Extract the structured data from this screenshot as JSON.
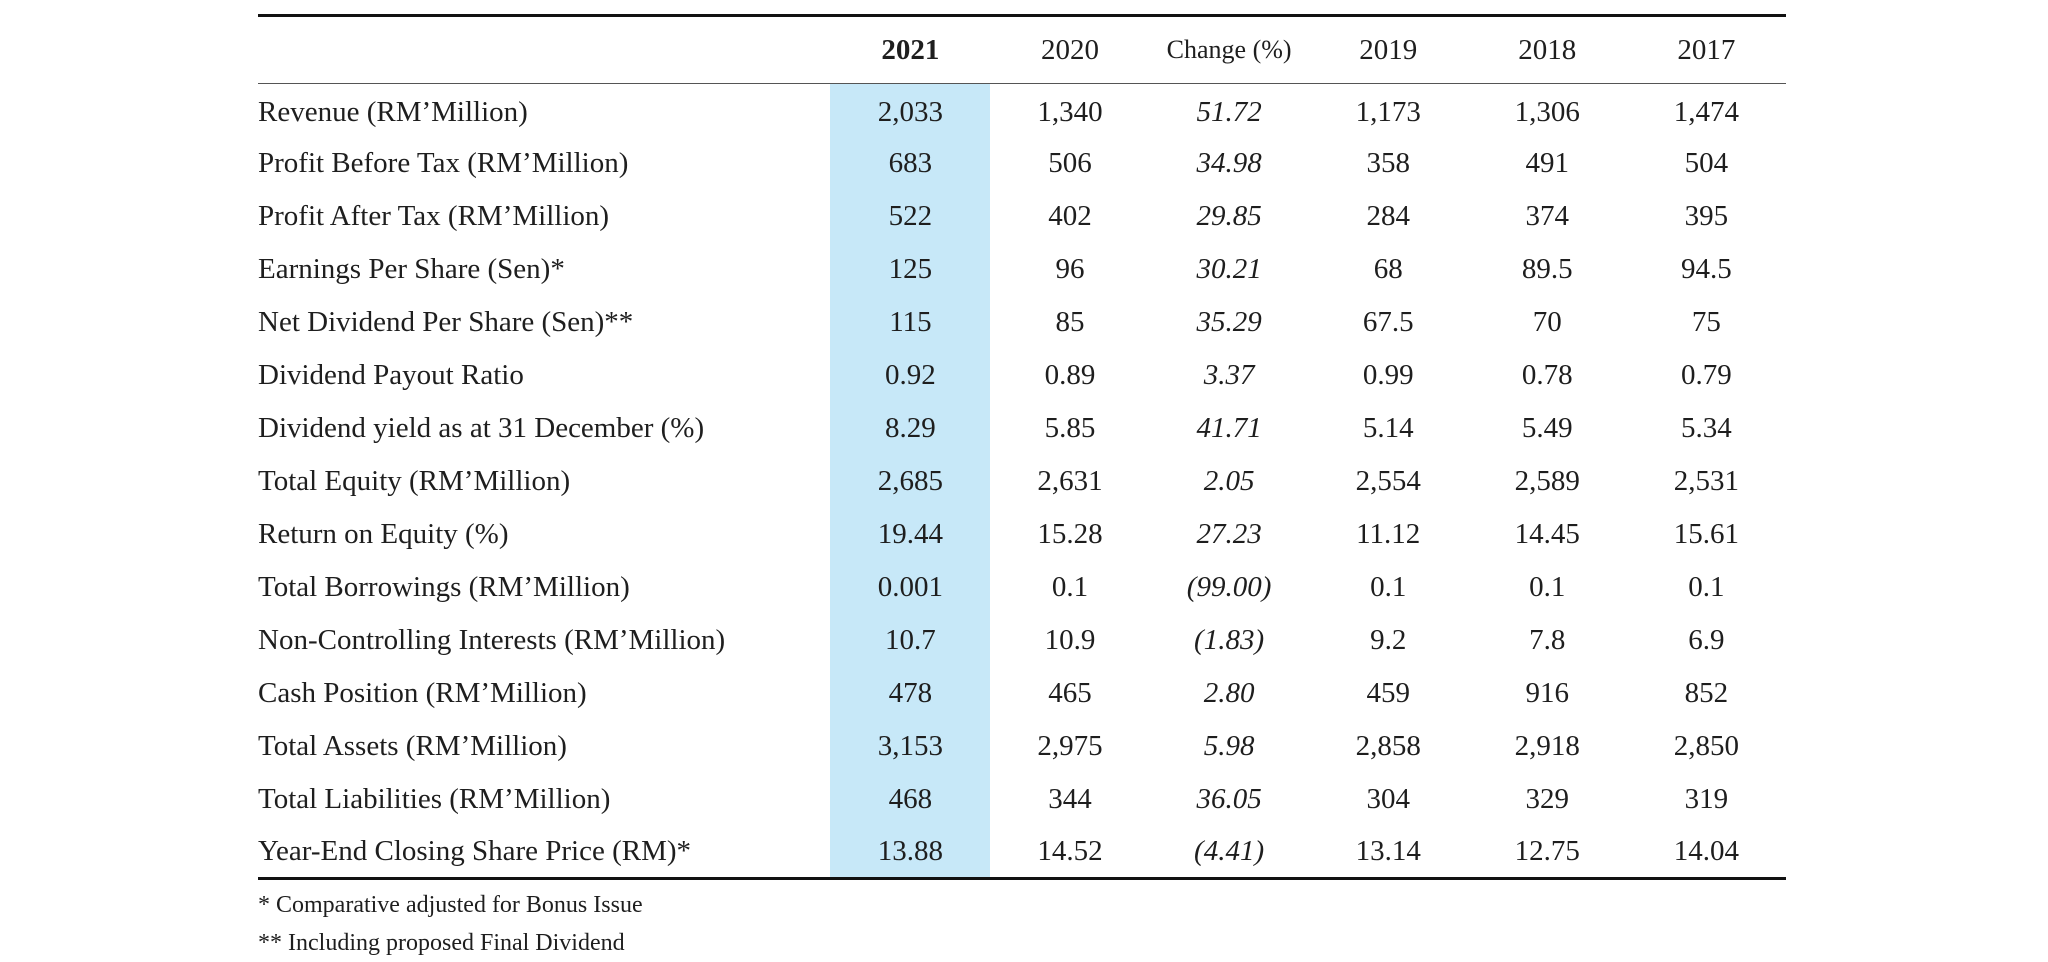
{
  "table": {
    "headers": [
      "",
      "2021",
      "2020",
      "Change (%)",
      "2019",
      "2018",
      "2017"
    ],
    "rows": [
      {
        "label": "Revenue  (RM’Million)",
        "y2021": "2,033",
        "y2020": "1,340",
        "change": "51.72",
        "y2019": "1,173",
        "y2018": "1,306",
        "y2017": "1,474"
      },
      {
        "label": "Profit Before Tax (RM’Million)",
        "y2021": "683",
        "y2020": "506",
        "change": "34.98",
        "y2019": "358",
        "y2018": "491",
        "y2017": "504"
      },
      {
        "label": "Profit After Tax (RM’Million)",
        "y2021": "522",
        "y2020": "402",
        "change": "29.85",
        "y2019": "284",
        "y2018": "374",
        "y2017": "395"
      },
      {
        "label": "Earnings Per Share (Sen)*",
        "y2021": "125",
        "y2020": "96",
        "change": "30.21",
        "y2019": "68",
        "y2018": "89.5",
        "y2017": "94.5"
      },
      {
        "label": "Net Dividend Per Share (Sen)**",
        "y2021": "115",
        "y2020": "85",
        "change": "35.29",
        "y2019": "67.5",
        "y2018": "70",
        "y2017": "75"
      },
      {
        "label": "Dividend Payout Ratio",
        "y2021": "0.92",
        "y2020": "0.89",
        "change": "3.37",
        "y2019": "0.99",
        "y2018": "0.78",
        "y2017": "0.79"
      },
      {
        "label": "Dividend yield as at 31 December (%)",
        "y2021": "8.29",
        "y2020": "5.85",
        "change": "41.71",
        "y2019": "5.14",
        "y2018": "5.49",
        "y2017": "5.34"
      },
      {
        "label": "Total Equity (RM’Million)",
        "y2021": "2,685",
        "y2020": "2,631",
        "change": "2.05",
        "y2019": "2,554",
        "y2018": "2,589",
        "y2017": "2,531"
      },
      {
        "label": "Return on Equity (%)",
        "y2021": "19.44",
        "y2020": "15.28",
        "change": "27.23",
        "y2019": "11.12",
        "y2018": "14.45",
        "y2017": "15.61"
      },
      {
        "label": "Total Borrowings (RM’Million)",
        "y2021": "0.001",
        "y2020": "0.1",
        "change": "(99.00)",
        "y2019": "0.1",
        "y2018": "0.1",
        "y2017": "0.1"
      },
      {
        "label": "Non-Controlling Interests (RM’Million)",
        "y2021": "10.7",
        "y2020": "10.9",
        "change": "(1.83)",
        "y2019": "9.2",
        "y2018": "7.8",
        "y2017": "6.9"
      },
      {
        "label": "Cash Position (RM’Million)",
        "y2021": "478",
        "y2020": "465",
        "change": "2.80",
        "y2019": "459",
        "y2018": "916",
        "y2017": "852"
      },
      {
        "label": "Total Assets (RM’Million)",
        "y2021": "3,153",
        "y2020": "2,975",
        "change": "5.98",
        "y2019": "2,858",
        "y2018": "2,918",
        "y2017": "2,850"
      },
      {
        "label": "Total Liabilities (RM’Million)",
        "y2021": "468",
        "y2020": "344",
        "change": "36.05",
        "y2019": "304",
        "y2018": "329",
        "y2017": "319"
      },
      {
        "label": "Year-End Closing Share Price (RM)*",
        "y2021": "13.88",
        "y2020": "14.52",
        "change": "(4.41)",
        "y2019": "13.14",
        "y2018": "12.75",
        "y2017": "14.04"
      }
    ]
  },
  "notes": [
    "*   Comparative adjusted for Bonus Issue",
    "** Including proposed Final Dividend"
  ],
  "colors": {
    "highlight_column": "#c7e8f8",
    "rule_lines": "#111111",
    "text": "#1e1e1e"
  }
}
